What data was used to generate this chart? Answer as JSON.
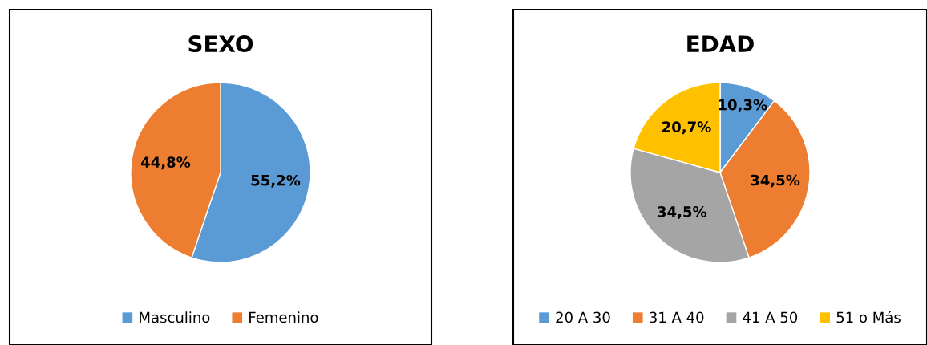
{
  "chart_data": [
    {
      "type": "pie",
      "title": "SEXO",
      "categories": [
        "Masculino",
        "Femenino"
      ],
      "values": [
        55.2,
        44.8
      ],
      "colors": [
        "#5b9bd5",
        "#ed7d31"
      ],
      "value_labels": [
        "55,2%",
        "44,8%"
      ],
      "legend": "bottom"
    },
    {
      "type": "pie",
      "title": "EDAD",
      "categories": [
        "20 A 30",
        "31 A 40",
        "41 A 50",
        "51 o Más"
      ],
      "values": [
        10.3,
        34.5,
        34.5,
        20.7
      ],
      "colors": [
        "#5b9bd5",
        "#ed7d31",
        "#a5a5a5",
        "#ffc000"
      ],
      "value_labels": [
        "10,3%",
        "34,5%",
        "34,5%",
        "20,7%"
      ],
      "legend": "bottom"
    }
  ]
}
